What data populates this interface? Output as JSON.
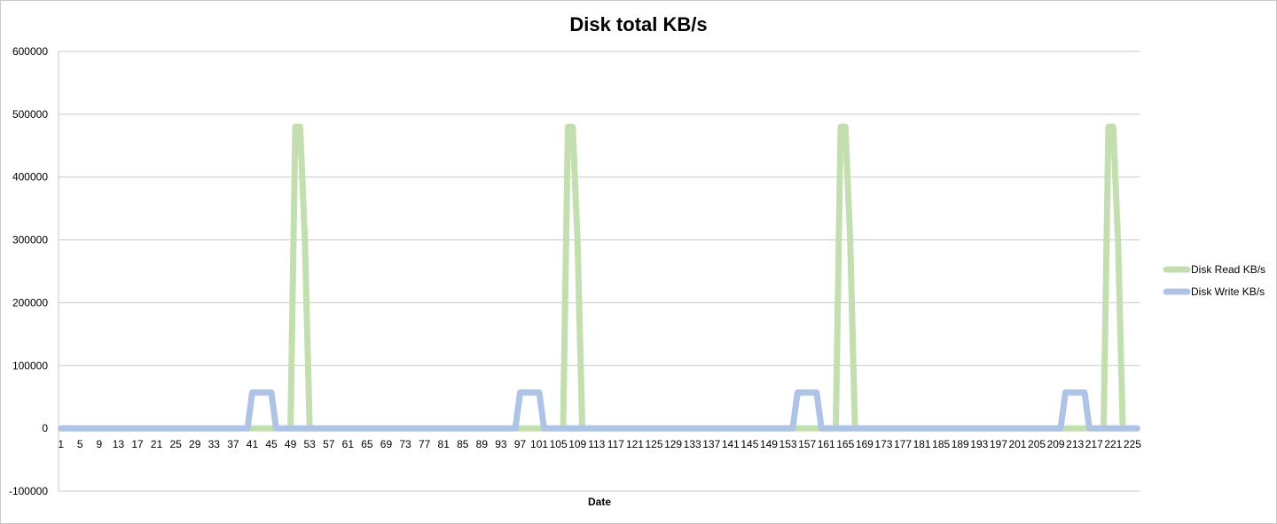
{
  "chart_data": {
    "type": "line",
    "title": "Disk total KB/s",
    "xlabel": "Date",
    "ylabel": "",
    "ylim": [
      -100000,
      600000
    ],
    "yticks": [
      -100000,
      0,
      100000,
      200000,
      300000,
      400000,
      500000,
      600000
    ],
    "x_start": 1,
    "x_end": 226,
    "x_tick_step": 4,
    "grid": "horizontal",
    "legend_position": "right",
    "series": [
      {
        "name": "Disk Read KB/s",
        "color": "#c3dfb0",
        "points": [
          [
            1,
            0
          ],
          [
            48,
            0
          ],
          [
            49,
            0
          ],
          [
            50,
            480000
          ],
          [
            51,
            480000
          ],
          [
            52,
            300000
          ],
          [
            53,
            0
          ],
          [
            54,
            0
          ],
          [
            106,
            0
          ],
          [
            107,
            480000
          ],
          [
            108,
            480000
          ],
          [
            109,
            300000
          ],
          [
            110,
            0
          ],
          [
            111,
            0
          ],
          [
            163,
            0
          ],
          [
            164,
            480000
          ],
          [
            165,
            480000
          ],
          [
            166,
            300000
          ],
          [
            167,
            0
          ],
          [
            168,
            0
          ],
          [
            219,
            0
          ],
          [
            220,
            480000
          ],
          [
            221,
            480000
          ],
          [
            222,
            300000
          ],
          [
            223,
            0
          ],
          [
            226,
            0
          ]
        ]
      },
      {
        "name": "Disk Write KB/s",
        "color": "#aec3e6",
        "points": [
          [
            1,
            0
          ],
          [
            40,
            0
          ],
          [
            41,
            57000
          ],
          [
            45,
            57000
          ],
          [
            46,
            0
          ],
          [
            96,
            0
          ],
          [
            97,
            57000
          ],
          [
            101,
            57000
          ],
          [
            102,
            0
          ],
          [
            113,
            0
          ],
          [
            154,
            0
          ],
          [
            155,
            57000
          ],
          [
            159,
            57000
          ],
          [
            160,
            0
          ],
          [
            210,
            0
          ],
          [
            211,
            57000
          ],
          [
            215,
            57000
          ],
          [
            216,
            0
          ],
          [
            226,
            0
          ]
        ]
      }
    ]
  }
}
